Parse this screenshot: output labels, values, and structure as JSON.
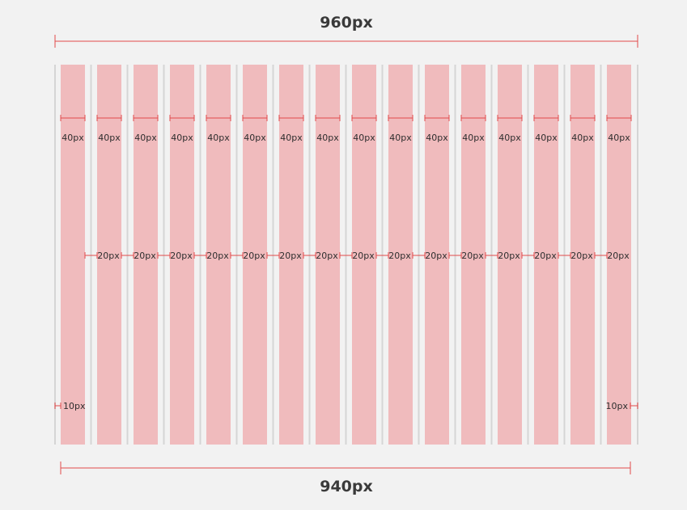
{
  "diagram": {
    "top_width_label": "960px",
    "bottom_width_label": "940px",
    "column_count": 16,
    "column_width_label": "40px",
    "gutter_label": "20px",
    "margin_label": "10px",
    "colors": {
      "background": "#f2f2f2",
      "column_fill": "#f0bbbd",
      "guide_line": "#d5d5d5",
      "measure_line": "#e24a4a",
      "text": "#2e2e2e"
    }
  }
}
